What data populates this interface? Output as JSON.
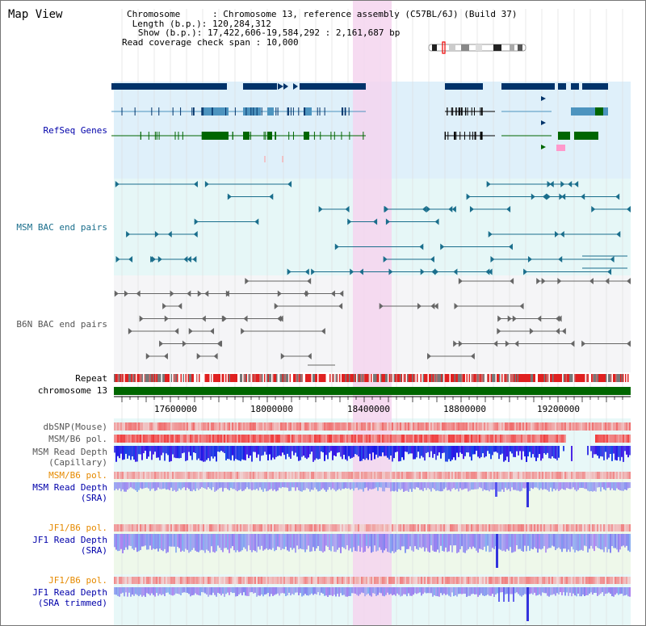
{
  "page": {
    "title": "Map View"
  },
  "info": {
    "chromosome_label": "Chromosome",
    "chromosome_value": "Chromosome 13, reference assembly (C57BL/6J) (Build 37)",
    "length_label": "Length (b.p.)",
    "length_value": "120,284,312",
    "show_label": "Show (b.p.)",
    "show_value": "17,422,606-19,584,292 : 2,161,687 bp",
    "coverage_label": "Read coverage check span",
    "coverage_value": "10,000"
  },
  "tracks": {
    "refseq": "RefSeq Genes",
    "msm_bac": "MSM BAC end pairs",
    "b6n_bac": "B6N BAC end pairs",
    "repeat": "Repeat",
    "chromosome": "chromosome 13",
    "dbsnp": "dbSNP(Mouse)",
    "msm_b6_pol_1": "MSM/B6 pol.",
    "msm_depth_cap_1": "MSM Read Depth",
    "msm_depth_cap_2": "(Capillary)",
    "msm_b6_pol_2": "MSM/B6 pol.",
    "msm_depth_sra_1": "MSM Read Depth",
    "msm_depth_sra_2": "(SRA)",
    "jf1_b6_pol_1": "JF1/B6 pol.",
    "jf1_depth_sra_1": "JF1 Read Depth",
    "jf1_depth_sra_2": "(SRA)",
    "jf1_b6_pol_2": "JF1/B6 pol.",
    "jf1_depth_trim_1": "JF1 Read Depth",
    "jf1_depth_trim_2": "(SRA trimmed)"
  },
  "ruler": {
    "ticks": [
      "17600000",
      "18000000",
      "18400000",
      "18800000",
      "19200000"
    ]
  },
  "colors": {
    "refseq_blue": "#00336a",
    "gene_green": "#006600",
    "gene_lightblue": "#4d94bf",
    "msm_color": "#1a6e8c",
    "b6n_color": "#666666",
    "highlight_pink": "#f5d5ef",
    "label_blue": "#0000aa",
    "label_orange": "#e68a00"
  }
}
